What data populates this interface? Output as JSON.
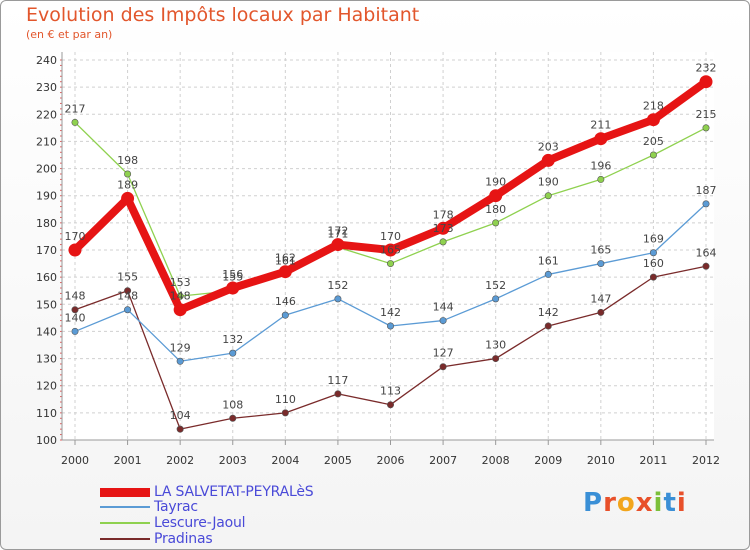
{
  "title": "Evolution des Impôts locaux par Habitant",
  "subtitle": "(en € et par an)",
  "logo": {
    "text": "Proxiti",
    "letters": [
      "P",
      "r",
      "o",
      "x",
      "i",
      "t",
      "i"
    ],
    "colors": [
      "#3a8fd6",
      "#e8502a",
      "#f2a51c",
      "#e8502a",
      "#7bbf3a",
      "#3a8fd6",
      "#e8502a"
    ]
  },
  "chart_data": {
    "type": "line",
    "title": "Evolution des Impôts locaux par Habitant",
    "subtitle": "(en € et par an)",
    "xlabel": "",
    "ylabel": "",
    "ylim": [
      100,
      240
    ],
    "yticks": [
      100,
      110,
      120,
      130,
      140,
      150,
      160,
      170,
      180,
      190,
      200,
      210,
      220,
      230,
      240
    ],
    "categories": [
      "2000",
      "2001",
      "2002",
      "2003",
      "2004",
      "2005",
      "2006",
      "2007",
      "2008",
      "2009",
      "2010",
      "2011",
      "2012"
    ],
    "grid": true,
    "legend_position": "bottom-left",
    "series": [
      {
        "name": "LA SALVETAT-PEYRALèS",
        "color": "#e61414",
        "values": [
          170,
          189,
          148,
          156,
          162,
          172,
          170,
          178,
          190,
          203,
          211,
          218,
          232
        ],
        "labels": [
          "170",
          "189",
          "148",
          "156",
          "162",
          "172",
          "170",
          "178",
          "190",
          "203",
          "211",
          "218",
          "232"
        ]
      },
      {
        "name": "Tayrac",
        "color": "#5b9bd5",
        "values": [
          140,
          148,
          129,
          132,
          146,
          152,
          142,
          144,
          152,
          161,
          165,
          169,
          187
        ],
        "labels": [
          "140",
          "148",
          "129",
          "132",
          "146",
          "152",
          "142",
          "144",
          "152",
          "161",
          "165",
          "169",
          "187"
        ]
      },
      {
        "name": "Lescure-Jaoul",
        "color": "#8fd14f",
        "values": [
          217,
          198,
          153,
          155,
          161,
          171,
          165,
          173,
          180,
          190,
          196,
          205,
          215
        ],
        "labels": [
          "217",
          "198",
          "153",
          "155",
          "161",
          "171",
          "165",
          "173",
          "180",
          "190",
          "196",
          "205",
          "215"
        ]
      },
      {
        "name": "Pradinas",
        "color": "#7a2b2b",
        "values": [
          148,
          155,
          104,
          108,
          110,
          117,
          113,
          127,
          130,
          142,
          147,
          160,
          164
        ],
        "labels": [
          "148",
          "155",
          "104",
          "108",
          "110",
          "117",
          "113",
          "127",
          "130",
          "142",
          "147",
          "160",
          "164"
        ]
      }
    ]
  }
}
